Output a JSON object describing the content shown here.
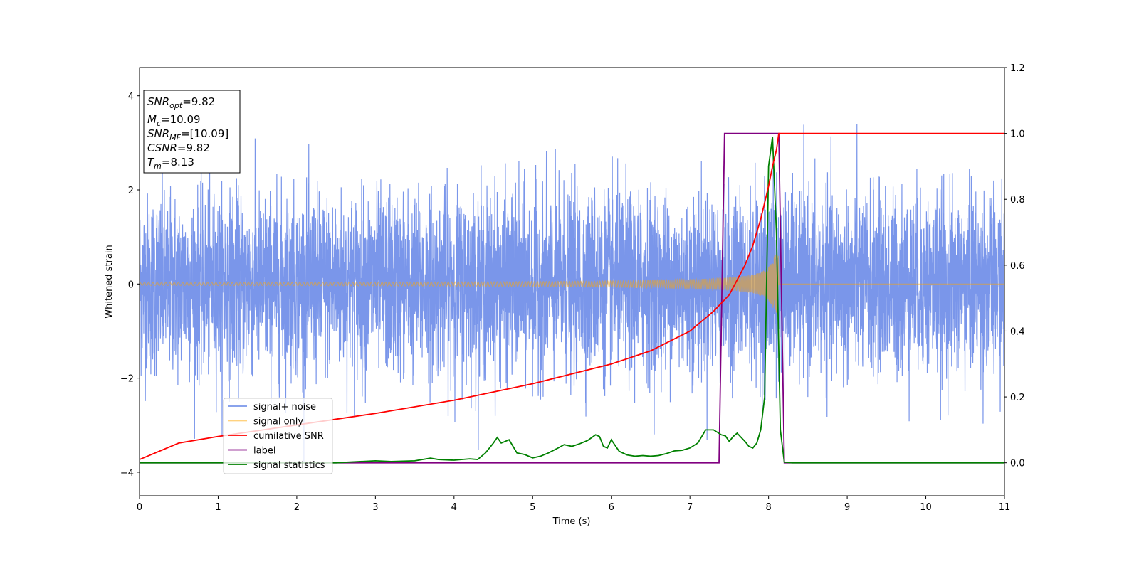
{
  "chart_data": {
    "type": "line",
    "title": "",
    "xlabel": "Time (s)",
    "ylabel": "Whitened strain",
    "y2label": "",
    "xlim": [
      0,
      11
    ],
    "ylim": [
      -4.5,
      4.6
    ],
    "y2lim": [
      -0.1,
      1.2
    ],
    "xticks": [
      "0",
      "1",
      "2",
      "3",
      "4",
      "5",
      "6",
      "7",
      "8",
      "9",
      "10",
      "11"
    ],
    "yticks": [
      "−4",
      "−2",
      "0",
      "2",
      "4"
    ],
    "y2ticks": [
      "0.0",
      "0.2",
      "0.4",
      "0.6",
      "0.8",
      "1.0",
      "1.2"
    ],
    "grid": false,
    "legend_position": "lower-left",
    "annotation": {
      "lines": [
        {
          "sym": "SNR",
          "sub": "opt",
          "value": "=9.82"
        },
        {
          "sym": "M",
          "sub": "c",
          "value": "=10.09"
        },
        {
          "sym": "SNR",
          "sub": "MF",
          "value": "=[10.09]"
        },
        {
          "sym": "CSNR",
          "sub": "",
          "value": "=9.82"
        },
        {
          "sym": "T",
          "sub": "m",
          "value": "=8.13"
        }
      ]
    },
    "series": [
      {
        "name": "signal+ noise",
        "color": "#4169e1",
        "axis": "left",
        "description_values": {
          "noise_std": 0.95,
          "time_span": [
            0,
            11
          ]
        }
      },
      {
        "name": "signal only",
        "color": "#ffa500",
        "axis": "left",
        "chirp": {
          "t_start": 0,
          "t_merge": 8.13,
          "amp_start": 0.03,
          "amp_peak": 0.65
        }
      },
      {
        "name": "cumilative SNR",
        "color": "#ff0000",
        "axis": "right",
        "x": [
          0,
          0.5,
          1,
          2,
          3,
          4,
          5,
          6,
          6.5,
          7,
          7.3,
          7.5,
          7.7,
          7.8,
          7.9,
          8.0,
          8.05,
          8.1,
          8.13,
          8.2,
          9,
          10,
          11
        ],
        "values": [
          0.01,
          0.06,
          0.08,
          0.115,
          0.15,
          0.19,
          0.24,
          0.3,
          0.34,
          0.4,
          0.46,
          0.51,
          0.6,
          0.66,
          0.74,
          0.84,
          0.9,
          0.95,
          1.0,
          1.0,
          1.0,
          1.0,
          1.0
        ]
      },
      {
        "name": "label",
        "color": "#800080",
        "axis": "right",
        "x": [
          0,
          7.37,
          7.44,
          8.13,
          8.2,
          11
        ],
        "values": [
          0,
          0,
          1,
          1,
          0,
          0
        ]
      },
      {
        "name": "signal statistics",
        "color": "#008000",
        "axis": "right",
        "x": [
          0,
          1,
          2,
          2.5,
          3.0,
          3.2,
          3.5,
          3.7,
          3.8,
          4.0,
          4.2,
          4.3,
          4.4,
          4.5,
          4.55,
          4.6,
          4.7,
          4.8,
          4.9,
          5.0,
          5.1,
          5.2,
          5.3,
          5.4,
          5.5,
          5.6,
          5.7,
          5.8,
          5.85,
          5.9,
          5.95,
          6.0,
          6.1,
          6.2,
          6.3,
          6.4,
          6.5,
          6.6,
          6.7,
          6.8,
          6.9,
          7.0,
          7.1,
          7.2,
          7.3,
          7.4,
          7.45,
          7.5,
          7.55,
          7.6,
          7.7,
          7.75,
          7.8,
          7.85,
          7.9,
          7.95,
          8.0,
          8.05,
          8.1,
          8.15,
          8.2,
          8.3,
          9,
          10,
          11
        ],
        "values": [
          0,
          0,
          0,
          0,
          0.006,
          0.004,
          0.006,
          0.014,
          0.01,
          0.008,
          0.012,
          0.01,
          0.03,
          0.06,
          0.077,
          0.06,
          0.07,
          0.03,
          0.025,
          0.015,
          0.02,
          0.03,
          0.042,
          0.055,
          0.05,
          0.058,
          0.068,
          0.085,
          0.08,
          0.05,
          0.045,
          0.07,
          0.035,
          0.024,
          0.02,
          0.022,
          0.02,
          0.022,
          0.028,
          0.036,
          0.038,
          0.045,
          0.06,
          0.1,
          0.1,
          0.085,
          0.082,
          0.065,
          0.08,
          0.09,
          0.065,
          0.05,
          0.045,
          0.06,
          0.1,
          0.2,
          0.9,
          0.99,
          0.7,
          0.1,
          0.002,
          0.0,
          0.0,
          0.0,
          0.0
        ]
      }
    ]
  }
}
